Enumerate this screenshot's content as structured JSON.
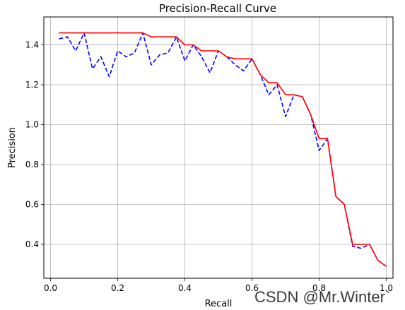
{
  "chart_data": {
    "type": "line",
    "title": "Precision-Recall Curve",
    "xlabel": "Recall",
    "ylabel": "Precision",
    "xlim": [
      -0.02,
      1.02
    ],
    "ylim": [
      0.23,
      1.54
    ],
    "xticks": [
      0.0,
      0.2,
      0.4,
      0.6,
      0.8,
      1.0
    ],
    "xtick_labels": [
      "0.0",
      "0.2",
      "0.4",
      "0.6",
      "0.8",
      "1.0"
    ],
    "yticks": [
      0.4,
      0.6,
      0.8,
      1.0,
      1.2,
      1.4
    ],
    "ytick_labels": [
      "0.4",
      "0.6",
      "0.8",
      "1.0",
      "1.2",
      "1.4"
    ],
    "grid": true,
    "series": [
      {
        "style": "dashed",
        "color": "#0000ff",
        "x": [
          0.025,
          0.05,
          0.075,
          0.1,
          0.125,
          0.15,
          0.175,
          0.2,
          0.225,
          0.25,
          0.275,
          0.3,
          0.325,
          0.35,
          0.375,
          0.4,
          0.425,
          0.45,
          0.475,
          0.5,
          0.525,
          0.55,
          0.575,
          0.6,
          0.625,
          0.65,
          0.675,
          0.7,
          0.725,
          0.75,
          0.775,
          0.8,
          0.825,
          0.85,
          0.875,
          0.9,
          0.925,
          0.95,
          0.975,
          1.0
        ],
        "y": [
          1.43,
          1.44,
          1.37,
          1.46,
          1.28,
          1.34,
          1.24,
          1.37,
          1.34,
          1.36,
          1.46,
          1.3,
          1.35,
          1.36,
          1.44,
          1.32,
          1.4,
          1.34,
          1.26,
          1.37,
          1.34,
          1.3,
          1.27,
          1.33,
          1.25,
          1.15,
          1.2,
          1.04,
          1.15,
          1.14,
          1.05,
          0.87,
          0.93,
          0.64,
          0.6,
          0.39,
          0.38,
          0.4,
          0.32,
          0.29
        ]
      },
      {
        "style": "solid",
        "color": "#ff0000",
        "x": [
          0.025,
          0.05,
          0.075,
          0.1,
          0.125,
          0.15,
          0.175,
          0.2,
          0.225,
          0.25,
          0.275,
          0.3,
          0.325,
          0.35,
          0.375,
          0.4,
          0.425,
          0.45,
          0.475,
          0.5,
          0.525,
          0.55,
          0.575,
          0.6,
          0.625,
          0.65,
          0.675,
          0.7,
          0.725,
          0.75,
          0.775,
          0.8,
          0.825,
          0.85,
          0.875,
          0.9,
          0.925,
          0.95,
          0.975,
          1.0
        ],
        "y": [
          1.46,
          1.46,
          1.46,
          1.46,
          1.46,
          1.46,
          1.46,
          1.46,
          1.46,
          1.46,
          1.46,
          1.44,
          1.44,
          1.44,
          1.44,
          1.4,
          1.4,
          1.37,
          1.37,
          1.37,
          1.34,
          1.33,
          1.33,
          1.33,
          1.25,
          1.21,
          1.21,
          1.15,
          1.15,
          1.14,
          1.05,
          0.93,
          0.93,
          0.64,
          0.6,
          0.4,
          0.4,
          0.4,
          0.32,
          0.29
        ]
      }
    ]
  },
  "watermark": "CSDN @Mr.Winter`"
}
